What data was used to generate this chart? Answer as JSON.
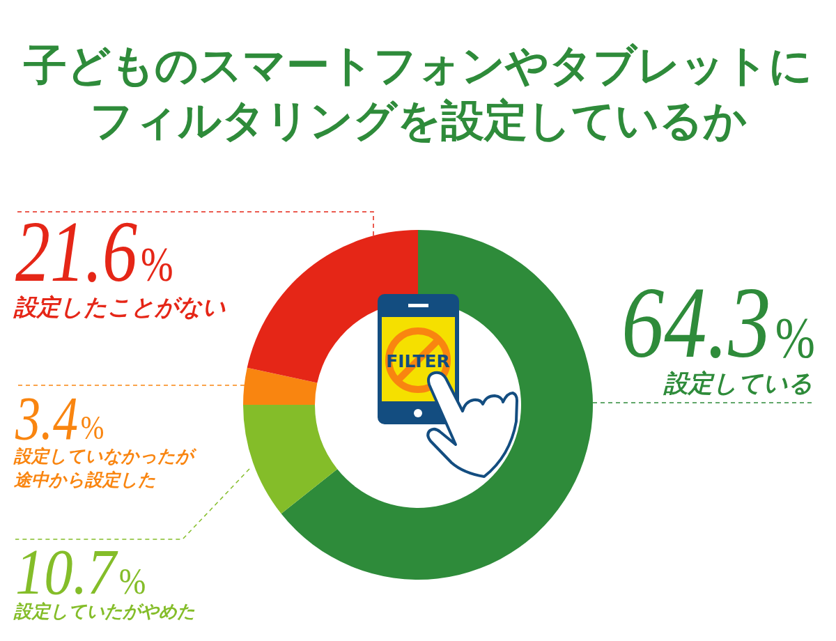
{
  "chart_data": {
    "type": "donut",
    "title": "子どものスマートフォンやタブレットにフィルタリングを設定しているか",
    "categories": [
      "設定している",
      "設定していたがやめた",
      "設定していなかったが途中から設定した",
      "設定したことがない"
    ],
    "values": [
      64.3,
      10.7,
      3.4,
      21.6
    ],
    "colors": [
      "#2e8b3a",
      "#84bd29",
      "#f98510",
      "#e52617"
    ],
    "value_labels": [
      "64.3%",
      "10.7%",
      "3.4%",
      "21.6%"
    ],
    "annotations": [
      "FILTER"
    ]
  }
}
